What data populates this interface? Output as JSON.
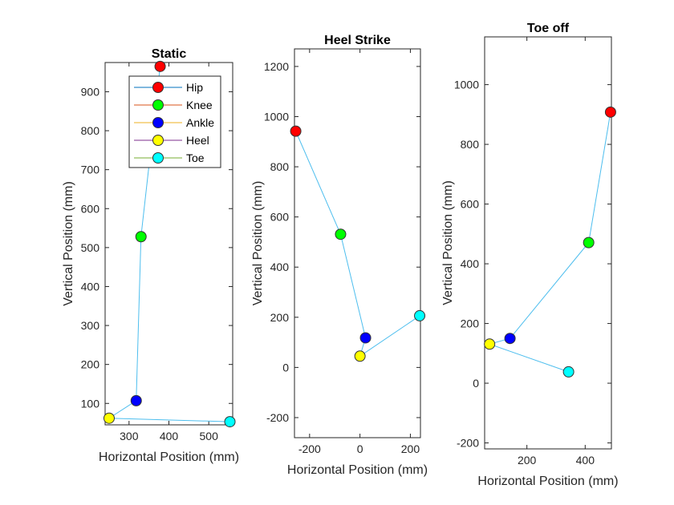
{
  "chart_data": [
    {
      "type": "scatter",
      "title": "Static",
      "xlabel": "Horizontal Position (mm)",
      "ylabel": "Vertical Position (mm)",
      "xlim": [
        240,
        560
      ],
      "ylim": [
        45,
        975
      ],
      "xticks": [
        300,
        400,
        500
      ],
      "yticks": [
        100,
        200,
        300,
        400,
        500,
        600,
        700,
        800,
        900
      ],
      "legend_position": "top-right",
      "series": [
        {
          "name": "Hip",
          "x": 378,
          "y": 965,
          "color": "#ff0000"
        },
        {
          "name": "Knee",
          "x": 330,
          "y": 528,
          "color": "#00ff00"
        },
        {
          "name": "Ankle",
          "x": 318,
          "y": 107,
          "color": "#0000ff"
        },
        {
          "name": "Heel",
          "x": 250,
          "y": 62,
          "color": "#ffff00"
        },
        {
          "name": "Toe",
          "x": 553,
          "y": 53,
          "color": "#00ffff"
        }
      ],
      "segments": [
        {
          "from": "Hip",
          "to": "Knee",
          "color": "#4dbeee"
        },
        {
          "from": "Knee",
          "to": "Ankle",
          "color": "#4dbeee"
        },
        {
          "from": "Ankle",
          "to": "Heel",
          "color": "#4dbeee"
        },
        {
          "from": "Heel",
          "to": "Toe",
          "color": "#4dbeee"
        }
      ],
      "legend_line_colors": [
        "#0072bd",
        "#d95319",
        "#edb120",
        "#7e2f8e",
        "#77ac30"
      ]
    },
    {
      "type": "scatter",
      "title": "Heel Strike",
      "xlabel": "Horizontal Position (mm)",
      "ylabel": "Vertical Position (mm)",
      "xlim": [
        -260,
        240
      ],
      "ylim": [
        -280,
        1270
      ],
      "xticks": [
        -200,
        0,
        200
      ],
      "yticks": [
        -200,
        0,
        200,
        400,
        600,
        800,
        1000,
        1200
      ],
      "series": [
        {
          "name": "Hip",
          "x": -255,
          "y": 942,
          "color": "#ff0000"
        },
        {
          "name": "Knee",
          "x": -77,
          "y": 531,
          "color": "#00ff00"
        },
        {
          "name": "Ankle",
          "x": 22,
          "y": 118,
          "color": "#0000ff"
        },
        {
          "name": "Heel",
          "x": 0,
          "y": 45,
          "color": "#ffff00"
        },
        {
          "name": "Toe",
          "x": 237,
          "y": 206,
          "color": "#00ffff"
        }
      ],
      "segments": [
        {
          "from": "Hip",
          "to": "Knee",
          "color": "#4dbeee"
        },
        {
          "from": "Knee",
          "to": "Ankle",
          "color": "#4dbeee"
        },
        {
          "from": "Ankle",
          "to": "Heel",
          "color": "#4dbeee"
        },
        {
          "from": "Heel",
          "to": "Toe",
          "color": "#4dbeee"
        }
      ]
    },
    {
      "type": "scatter",
      "title": "Toe off",
      "xlabel": "Horizontal Position (mm)",
      "ylabel": "Vertical Position (mm)",
      "xlim": [
        55,
        490
      ],
      "ylim": [
        -220,
        1160
      ],
      "xticks": [
        200,
        400
      ],
      "yticks": [
        -200,
        0,
        200,
        400,
        600,
        800,
        1000
      ],
      "series": [
        {
          "name": "Hip",
          "x": 487,
          "y": 908,
          "color": "#ff0000"
        },
        {
          "name": "Knee",
          "x": 412,
          "y": 471,
          "color": "#00ff00"
        },
        {
          "name": "Ankle",
          "x": 142,
          "y": 150,
          "color": "#0000ff"
        },
        {
          "name": "Heel",
          "x": 72,
          "y": 131,
          "color": "#ffff00"
        },
        {
          "name": "Toe",
          "x": 343,
          "y": 38,
          "color": "#00ffff"
        }
      ],
      "segments": [
        {
          "from": "Hip",
          "to": "Knee",
          "color": "#4dbeee"
        },
        {
          "from": "Knee",
          "to": "Ankle",
          "color": "#4dbeee"
        },
        {
          "from": "Ankle",
          "to": "Heel",
          "color": "#4dbeee"
        },
        {
          "from": "Heel",
          "to": "Toe",
          "color": "#4dbeee"
        }
      ]
    }
  ]
}
